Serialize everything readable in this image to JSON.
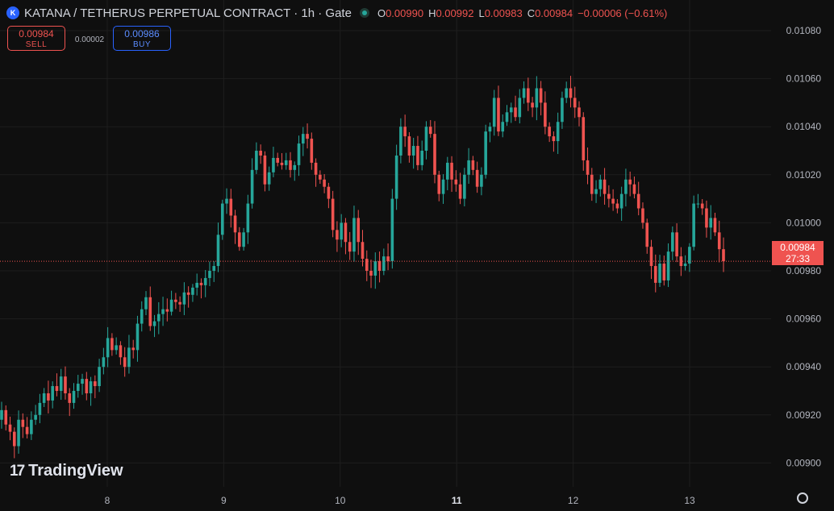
{
  "header": {
    "logo_letter": "K",
    "title": "KATANA / TETHERUS PERPETUAL CONTRACT · 1h · Gate",
    "ohlc": {
      "o_label": "O",
      "o_value": "0.00990",
      "h_label": "H",
      "h_value": "0.00992",
      "l_label": "L",
      "l_value": "0.00983",
      "c_label": "C",
      "c_value": "0.00984",
      "change": "−0.00006 (−0.61%)"
    }
  },
  "trade": {
    "sell_price": "0.00984",
    "sell_label": "SELL",
    "spread": "0.00002",
    "buy_price": "0.00986",
    "buy_label": "BUY"
  },
  "watermark": {
    "text": "TradingView",
    "mark": "17"
  },
  "last_price": {
    "value": "0.00984",
    "countdown": "27:33"
  },
  "colors": {
    "up": "#26a69a",
    "down": "#ef5350",
    "grid": "#1e1e1e",
    "background": "#0f0f0f"
  },
  "chart_data": {
    "type": "candlestick",
    "title": "KATANA / TETHERUS PERPETUAL CONTRACT · 1h · Gate",
    "x_ticks": [
      {
        "label": "8",
        "day": 8,
        "bold": false
      },
      {
        "label": "9",
        "day": 9,
        "bold": false
      },
      {
        "label": "10",
        "day": 10,
        "bold": false
      },
      {
        "label": "11",
        "day": 11,
        "bold": true
      },
      {
        "label": "12",
        "day": 12,
        "bold": false
      },
      {
        "label": "13",
        "day": 13,
        "bold": false
      }
    ],
    "y_ticks": [
      "0.00900",
      "0.00920",
      "0.00940",
      "0.00960",
      "0.00980",
      "0.01000",
      "0.01020",
      "0.01040",
      "0.01060",
      "0.01080"
    ],
    "ylim": [
      0.00883,
      0.01088
    ],
    "xlim_day": [
      7.08,
      13.67
    ],
    "last_price": 0.00984,
    "closes": [
      0.00922,
      0.00916,
      0.00913,
      0.00907,
      0.00918,
      0.00915,
      0.00912,
      0.00918,
      0.0092,
      0.00925,
      0.00929,
      0.00926,
      0.00932,
      0.0093,
      0.00936,
      0.00929,
      0.00925,
      0.0093,
      0.00933,
      0.00935,
      0.00929,
      0.00934,
      0.00932,
      0.0094,
      0.00944,
      0.00952,
      0.00947,
      0.00949,
      0.00944,
      0.0094,
      0.00948,
      0.00947,
      0.00958,
      0.00964,
      0.00969,
      0.00957,
      0.00959,
      0.00962,
      0.00964,
      0.00963,
      0.00968,
      0.00967,
      0.00966,
      0.00971,
      0.0097,
      0.00973,
      0.00975,
      0.00974,
      0.00977,
      0.0098,
      0.00982,
      0.00995,
      0.01008,
      0.0101,
      0.01003,
      0.00996,
      0.0099,
      0.00996,
      0.01008,
      0.01022,
      0.0103,
      0.01028,
      0.01016,
      0.01021,
      0.01027,
      0.01025,
      0.01024,
      0.01026,
      0.01022,
      0.01024,
      0.01033,
      0.01037,
      0.01035,
      0.01025,
      0.0102,
      0.01018,
      0.01015,
      0.0101,
      0.00997,
      0.00993,
      0.01,
      0.00992,
      0.00988,
      0.01002,
      0.00992,
      0.00985,
      0.0098,
      0.00978,
      0.00984,
      0.0098,
      0.00986,
      0.00984,
      0.0101,
      0.01028,
      0.0104,
      0.01036,
      0.01028,
      0.01032,
      0.01024,
      0.0103,
      0.0104,
      0.01037,
      0.0102,
      0.01012,
      0.01018,
      0.01025,
      0.01018,
      0.01016,
      0.0101,
      0.0102,
      0.01026,
      0.01022,
      0.01015,
      0.0102,
      0.01038,
      0.0104,
      0.01052,
      0.01038,
      0.01042,
      0.01046,
      0.01048,
      0.01044,
      0.01052,
      0.01056,
      0.0105,
      0.01048,
      0.01056,
      0.0105,
      0.0104,
      0.01036,
      0.01034,
      0.01042,
      0.01052,
      0.01056,
      0.01052,
      0.01048,
      0.01044,
      0.01026,
      0.0102,
      0.01012,
      0.01014,
      0.01018,
      0.01012,
      0.0101,
      0.01008,
      0.01006,
      0.01012,
      0.01018,
      0.01016,
      0.01012,
      0.01006,
      0.01,
      0.0099,
      0.00982,
      0.00975,
      0.00983,
      0.00976,
      0.00988,
      0.00996,
      0.00986,
      0.00982,
      0.00983,
      0.0099,
      0.01008,
      0.01008,
      0.01006,
      0.00998,
      0.01002,
      0.00996,
      0.00989,
      0.00984
    ]
  }
}
